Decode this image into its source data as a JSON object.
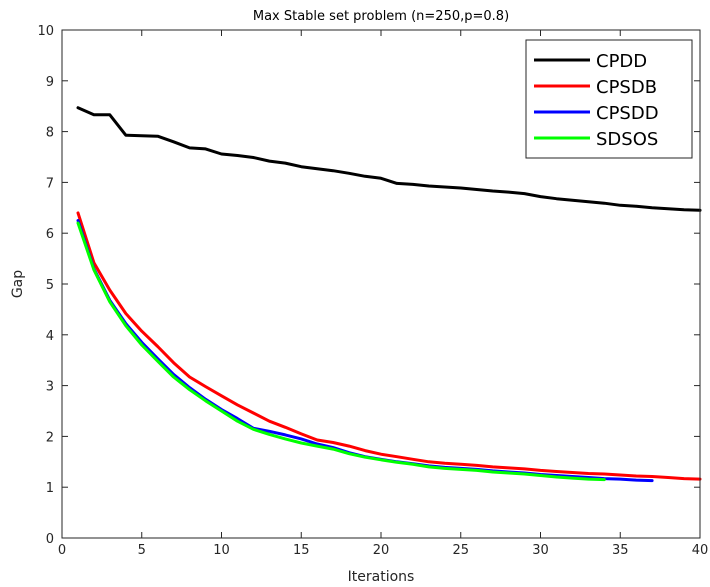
{
  "chart_data": {
    "type": "line",
    "title": "Max Stable set problem  (n=250,p=0.8)",
    "xlabel": "Iterations",
    "ylabel": "Gap",
    "xlim": [
      0,
      40
    ],
    "ylim": [
      0,
      10
    ],
    "xticks": [
      0,
      5,
      10,
      15,
      20,
      25,
      30,
      35,
      40
    ],
    "yticks": [
      0,
      1,
      2,
      3,
      4,
      5,
      6,
      7,
      8,
      9,
      10
    ],
    "grid": false,
    "legend_position": "top-right",
    "series": [
      {
        "name": "CPDD",
        "color": "#000000",
        "x": [
          1,
          2,
          3,
          4,
          5,
          6,
          7,
          8,
          9,
          10,
          11,
          12,
          13,
          14,
          15,
          16,
          17,
          18,
          19,
          20,
          21,
          22,
          23,
          24,
          25,
          26,
          27,
          28,
          29,
          30,
          31,
          32,
          33,
          34,
          35,
          36,
          37,
          38,
          39,
          40
        ],
        "y": [
          8.47,
          8.33,
          8.33,
          7.93,
          7.92,
          7.91,
          7.8,
          7.68,
          7.66,
          7.56,
          7.53,
          7.49,
          7.42,
          7.38,
          7.31,
          7.27,
          7.23,
          7.18,
          7.12,
          7.08,
          6.98,
          6.96,
          6.93,
          6.91,
          6.89,
          6.86,
          6.83,
          6.81,
          6.78,
          6.72,
          6.68,
          6.65,
          6.62,
          6.59,
          6.55,
          6.53,
          6.5,
          6.48,
          6.46,
          6.45
        ]
      },
      {
        "name": "CPSDB",
        "color": "#ff0000",
        "x": [
          1,
          2,
          3,
          4,
          5,
          6,
          7,
          8,
          9,
          10,
          11,
          12,
          13,
          14,
          15,
          16,
          17,
          18,
          19,
          20,
          21,
          22,
          23,
          24,
          25,
          26,
          27,
          28,
          29,
          30,
          31,
          32,
          33,
          34,
          35,
          36,
          37,
          38,
          39,
          40
        ],
        "y": [
          6.4,
          5.42,
          4.88,
          4.42,
          4.07,
          3.77,
          3.45,
          3.17,
          2.98,
          2.8,
          2.62,
          2.46,
          2.3,
          2.18,
          2.05,
          1.93,
          1.88,
          1.81,
          1.72,
          1.65,
          1.6,
          1.55,
          1.5,
          1.47,
          1.45,
          1.43,
          1.4,
          1.38,
          1.36,
          1.33,
          1.31,
          1.29,
          1.27,
          1.26,
          1.24,
          1.22,
          1.21,
          1.19,
          1.17,
          1.16
        ]
      },
      {
        "name": "CPSDD",
        "color": "#0000ff",
        "x": [
          1,
          2,
          3,
          4,
          5,
          6,
          7,
          8,
          9,
          10,
          11,
          12,
          13,
          14,
          15,
          16,
          17,
          18,
          19,
          20,
          21,
          22,
          23,
          24,
          25,
          26,
          27,
          28,
          29,
          30,
          31,
          32,
          33,
          34,
          35,
          36,
          37
        ],
        "y": [
          6.25,
          5.3,
          4.68,
          4.22,
          3.85,
          3.53,
          3.22,
          2.96,
          2.73,
          2.53,
          2.35,
          2.16,
          2.1,
          2.03,
          1.95,
          1.85,
          1.78,
          1.68,
          1.6,
          1.55,
          1.5,
          1.46,
          1.42,
          1.39,
          1.37,
          1.35,
          1.32,
          1.3,
          1.28,
          1.25,
          1.23,
          1.21,
          1.19,
          1.17,
          1.16,
          1.14,
          1.13
        ]
      },
      {
        "name": "SDSOS",
        "color": "#00ff00",
        "x": [
          1,
          2,
          3,
          4,
          5,
          6,
          7,
          8,
          9,
          10,
          11,
          12,
          13,
          14,
          15,
          16,
          17,
          18,
          19,
          20,
          21,
          22,
          23,
          24,
          25,
          26,
          27,
          28,
          29,
          30,
          31,
          32,
          33,
          34
        ],
        "y": [
          6.2,
          5.28,
          4.65,
          4.18,
          3.8,
          3.48,
          3.17,
          2.92,
          2.7,
          2.5,
          2.3,
          2.14,
          2.04,
          1.95,
          1.87,
          1.81,
          1.75,
          1.66,
          1.59,
          1.54,
          1.49,
          1.45,
          1.4,
          1.37,
          1.35,
          1.33,
          1.3,
          1.28,
          1.26,
          1.23,
          1.2,
          1.18,
          1.16,
          1.15
        ]
      }
    ]
  }
}
